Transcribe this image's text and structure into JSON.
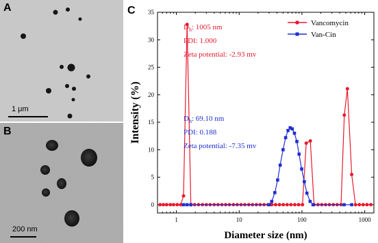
{
  "panels": {
    "a": {
      "letter": "A",
      "scale_label": "1 μm"
    },
    "b": {
      "letter": "B",
      "scale_label": "200 nm"
    },
    "c": {
      "letter": "C"
    }
  },
  "colors": {
    "vancomycin": "#e8192c",
    "van_cin": "#1f2fd1"
  },
  "chart_data": {
    "type": "line",
    "xlabel": "Diameter size (nm)",
    "ylabel": "Intensity (%)",
    "x_scale": "log",
    "xlim": [
      0.5,
      1400
    ],
    "ylim": [
      -1.5,
      35
    ],
    "x_ticks": [
      1,
      10,
      100,
      1000
    ],
    "x_tick_labels": [
      "1",
      "10",
      "100",
      "1000"
    ],
    "y_ticks": [
      0,
      5,
      10,
      15,
      20,
      25,
      30,
      35
    ],
    "y_tick_labels": [
      "0",
      "5",
      "10",
      "15",
      "20",
      "25",
      "30",
      "35"
    ],
    "legend": {
      "placement": "top-right"
    },
    "series": [
      {
        "name": "Vancomycin",
        "color": "#e8192c",
        "marker": "circle",
        "points": [
          [
            0.55,
            0
          ],
          [
            0.62,
            0
          ],
          [
            0.7,
            0
          ],
          [
            0.8,
            0
          ],
          [
            0.9,
            0
          ],
          [
            1.03,
            0
          ],
          [
            1.17,
            0
          ],
          [
            1.3,
            1.6
          ],
          [
            1.48,
            32.8
          ],
          [
            1.7,
            0
          ],
          [
            1.95,
            0
          ],
          [
            2.25,
            0
          ],
          [
            2.6,
            0
          ],
          [
            3.0,
            0
          ],
          [
            3.45,
            0
          ],
          [
            4.0,
            0
          ],
          [
            4.6,
            0
          ],
          [
            5.3,
            0
          ],
          [
            6.1,
            0
          ],
          [
            7.0,
            0
          ],
          [
            8.1,
            0
          ],
          [
            9.3,
            0
          ],
          [
            10.7,
            0
          ],
          [
            12.3,
            0
          ],
          [
            14.2,
            0
          ],
          [
            16.3,
            0
          ],
          [
            18.8,
            0
          ],
          [
            21.6,
            0
          ],
          [
            24.9,
            0
          ],
          [
            28.7,
            0
          ],
          [
            33,
            0
          ],
          [
            38,
            0
          ],
          [
            43.8,
            0
          ],
          [
            50.4,
            0
          ],
          [
            58,
            0
          ],
          [
            66.8,
            0
          ],
          [
            76.9,
            0
          ],
          [
            88.5,
            0
          ],
          [
            101.9,
            0
          ],
          [
            117,
            11.2
          ],
          [
            136,
            11.6
          ],
          [
            156,
            0
          ],
          [
            180,
            0
          ],
          [
            207,
            0
          ],
          [
            238,
            0
          ],
          [
            274,
            0
          ],
          [
            316,
            0
          ],
          [
            364,
            0
          ],
          [
            419,
            0
          ],
          [
            473,
            16.3
          ],
          [
            530,
            21.1
          ],
          [
            620,
            5.5
          ],
          [
            712,
            0
          ],
          [
            820,
            0
          ],
          [
            944,
            0
          ],
          [
            1087,
            0
          ],
          [
            1252,
            0
          ]
        ]
      },
      {
        "name": "Van-Cin",
        "color": "#1f2fd1",
        "marker": "square",
        "points": [
          [
            1.3,
            0
          ],
          [
            1.48,
            0
          ],
          [
            1.7,
            0
          ],
          [
            30,
            0
          ],
          [
            33,
            0.6
          ],
          [
            37,
            2.2
          ],
          [
            41,
            4.5
          ],
          [
            45,
            7.2
          ],
          [
            50,
            10.0
          ],
          [
            55,
            12.2
          ],
          [
            60,
            13.5
          ],
          [
            65,
            14.0
          ],
          [
            70,
            13.8
          ],
          [
            76,
            13.0
          ],
          [
            83,
            11.5
          ],
          [
            90,
            9.2
          ],
          [
            99,
            6.5
          ],
          [
            109,
            4.2
          ],
          [
            120,
            2.1
          ],
          [
            135,
            0.6
          ],
          [
            150,
            0
          ],
          [
            470,
            0
          ],
          [
            620,
            0
          ]
        ]
      }
    ],
    "annotations": [
      {
        "series": "Vancomycin",
        "lines": [
          {
            "main": "D",
            "sub": "h",
            "rest": ": 1005 nm"
          },
          {
            "main": "PDI: 1.000",
            "sub": "",
            "rest": ""
          },
          {
            "main": "Zeta potential: -2.93 mv",
            "sub": "",
            "rest": ""
          }
        ]
      },
      {
        "series": "Van-Cin",
        "lines": [
          {
            "main": "D",
            "sub": "h",
            "rest": ": 69.10 nm"
          },
          {
            "main": "PDI: 0.188",
            "sub": "",
            "rest": ""
          },
          {
            "main": "Zeta potential: -7.35 mv",
            "sub": "",
            "rest": ""
          }
        ]
      }
    ]
  }
}
